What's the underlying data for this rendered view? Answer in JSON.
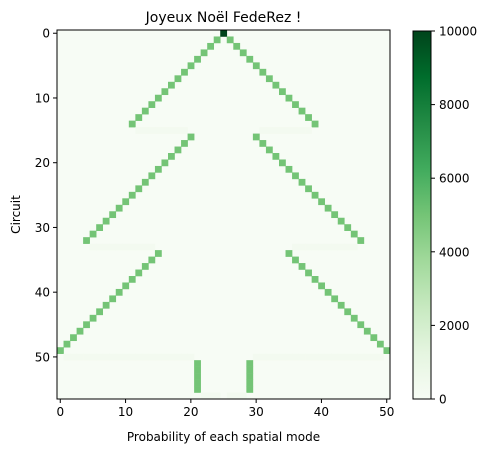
{
  "chart_data": {
    "type": "heatmap",
    "title": "Joyeux Noël FedeRez !",
    "xlabel": "Probability of each spatial mode",
    "ylabel": "Circuit",
    "x_ticks": [
      0,
      10,
      20,
      30,
      40,
      50
    ],
    "y_ticks": [
      0,
      10,
      20,
      30,
      40,
      50
    ],
    "colorbar_ticks": [
      0,
      2000,
      4000,
      6000,
      8000,
      10000
    ],
    "colormap": "Greens",
    "color_min": "#f7fcf5",
    "color_max": "#00441b",
    "vmin": 0,
    "vmax": 10000,
    "n_cols": 51,
    "n_rows": 57,
    "cells": [
      [
        0,
        25,
        10000
      ],
      [
        1,
        24,
        5000
      ],
      [
        1,
        26,
        5000
      ],
      [
        2,
        23,
        5000
      ],
      [
        2,
        27,
        5000
      ],
      [
        3,
        22,
        5000
      ],
      [
        3,
        28,
        5000
      ],
      [
        4,
        21,
        5000
      ],
      [
        4,
        29,
        5000
      ],
      [
        5,
        20,
        5000
      ],
      [
        5,
        30,
        5000
      ],
      [
        6,
        19,
        5000
      ],
      [
        6,
        31,
        5000
      ],
      [
        7,
        18,
        5000
      ],
      [
        7,
        32,
        5000
      ],
      [
        8,
        17,
        5000
      ],
      [
        8,
        33,
        5000
      ],
      [
        9,
        16,
        5000
      ],
      [
        9,
        34,
        5000
      ],
      [
        10,
        15,
        5000
      ],
      [
        10,
        35,
        5000
      ],
      [
        11,
        14,
        5000
      ],
      [
        11,
        36,
        5000
      ],
      [
        12,
        13,
        5000
      ],
      [
        12,
        37,
        5000
      ],
      [
        13,
        12,
        5000
      ],
      [
        13,
        38,
        5000
      ],
      [
        14,
        11,
        5000
      ],
      [
        14,
        39,
        5000
      ],
      [
        15,
        12,
        300
      ],
      [
        15,
        13,
        300
      ],
      [
        15,
        14,
        300
      ],
      [
        15,
        15,
        300
      ],
      [
        15,
        16,
        300
      ],
      [
        15,
        17,
        300
      ],
      [
        15,
        18,
        300
      ],
      [
        15,
        19,
        300
      ],
      [
        15,
        31,
        300
      ],
      [
        15,
        32,
        300
      ],
      [
        15,
        33,
        300
      ],
      [
        15,
        34,
        300
      ],
      [
        15,
        35,
        300
      ],
      [
        15,
        36,
        300
      ],
      [
        15,
        37,
        300
      ],
      [
        15,
        38,
        300
      ],
      [
        16,
        20,
        5000
      ],
      [
        16,
        30,
        5000
      ],
      [
        17,
        19,
        5000
      ],
      [
        17,
        31,
        5000
      ],
      [
        18,
        18,
        5000
      ],
      [
        18,
        32,
        5000
      ],
      [
        19,
        17,
        5000
      ],
      [
        19,
        33,
        5000
      ],
      [
        20,
        16,
        5000
      ],
      [
        20,
        34,
        5000
      ],
      [
        21,
        15,
        5000
      ],
      [
        21,
        35,
        5000
      ],
      [
        22,
        14,
        5000
      ],
      [
        22,
        36,
        5000
      ],
      [
        23,
        13,
        5000
      ],
      [
        23,
        37,
        5000
      ],
      [
        24,
        12,
        5000
      ],
      [
        24,
        38,
        5000
      ],
      [
        25,
        11,
        5000
      ],
      [
        25,
        39,
        5000
      ],
      [
        26,
        10,
        5000
      ],
      [
        26,
        40,
        5000
      ],
      [
        27,
        9,
        5000
      ],
      [
        27,
        41,
        5000
      ],
      [
        28,
        8,
        5000
      ],
      [
        28,
        42,
        5000
      ],
      [
        29,
        7,
        5000
      ],
      [
        29,
        43,
        5000
      ],
      [
        30,
        6,
        5000
      ],
      [
        30,
        44,
        5000
      ],
      [
        31,
        5,
        5000
      ],
      [
        31,
        45,
        5000
      ],
      [
        32,
        4,
        5000
      ],
      [
        32,
        46,
        5000
      ],
      [
        33,
        5,
        300
      ],
      [
        33,
        6,
        300
      ],
      [
        33,
        7,
        300
      ],
      [
        33,
        8,
        300
      ],
      [
        33,
        9,
        300
      ],
      [
        33,
        10,
        300
      ],
      [
        33,
        11,
        300
      ],
      [
        33,
        12,
        300
      ],
      [
        33,
        13,
        300
      ],
      [
        33,
        14,
        300
      ],
      [
        33,
        36,
        300
      ],
      [
        33,
        37,
        300
      ],
      [
        33,
        38,
        300
      ],
      [
        33,
        39,
        300
      ],
      [
        33,
        40,
        300
      ],
      [
        33,
        41,
        300
      ],
      [
        33,
        42,
        300
      ],
      [
        33,
        43,
        300
      ],
      [
        33,
        44,
        300
      ],
      [
        33,
        45,
        300
      ],
      [
        34,
        15,
        5000
      ],
      [
        34,
        35,
        5000
      ],
      [
        35,
        14,
        5000
      ],
      [
        35,
        36,
        5000
      ],
      [
        36,
        13,
        5000
      ],
      [
        36,
        37,
        5000
      ],
      [
        37,
        12,
        5000
      ],
      [
        37,
        38,
        5000
      ],
      [
        38,
        11,
        5000
      ],
      [
        38,
        39,
        5000
      ],
      [
        39,
        10,
        5000
      ],
      [
        39,
        40,
        5000
      ],
      [
        40,
        9,
        5000
      ],
      [
        40,
        41,
        5000
      ],
      [
        41,
        8,
        5000
      ],
      [
        41,
        42,
        5000
      ],
      [
        42,
        7,
        5000
      ],
      [
        42,
        43,
        5000
      ],
      [
        43,
        6,
        5000
      ],
      [
        43,
        44,
        5000
      ],
      [
        44,
        5,
        5000
      ],
      [
        44,
        45,
        5000
      ],
      [
        45,
        4,
        5000
      ],
      [
        45,
        46,
        5000
      ],
      [
        46,
        3,
        5000
      ],
      [
        46,
        47,
        5000
      ],
      [
        47,
        2,
        5000
      ],
      [
        47,
        48,
        5000
      ],
      [
        48,
        1,
        5000
      ],
      [
        48,
        49,
        5000
      ],
      [
        49,
        0,
        5000
      ],
      [
        49,
        50,
        5000
      ],
      [
        50,
        1,
        300
      ],
      [
        50,
        2,
        300
      ],
      [
        50,
        3,
        300
      ],
      [
        50,
        4,
        300
      ],
      [
        50,
        5,
        300
      ],
      [
        50,
        6,
        300
      ],
      [
        50,
        7,
        300
      ],
      [
        50,
        8,
        300
      ],
      [
        50,
        9,
        300
      ],
      [
        50,
        10,
        300
      ],
      [
        50,
        11,
        300
      ],
      [
        50,
        12,
        300
      ],
      [
        50,
        13,
        300
      ],
      [
        50,
        14,
        300
      ],
      [
        50,
        15,
        300
      ],
      [
        50,
        16,
        300
      ],
      [
        50,
        17,
        300
      ],
      [
        50,
        18,
        300
      ],
      [
        50,
        19,
        300
      ],
      [
        50,
        20,
        300
      ],
      [
        50,
        30,
        300
      ],
      [
        50,
        31,
        300
      ],
      [
        50,
        32,
        300
      ],
      [
        50,
        33,
        300
      ],
      [
        50,
        34,
        300
      ],
      [
        50,
        35,
        300
      ],
      [
        50,
        36,
        300
      ],
      [
        50,
        37,
        300
      ],
      [
        50,
        38,
        300
      ],
      [
        50,
        39,
        300
      ],
      [
        50,
        40,
        300
      ],
      [
        50,
        41,
        300
      ],
      [
        50,
        42,
        300
      ],
      [
        50,
        43,
        300
      ],
      [
        50,
        44,
        300
      ],
      [
        50,
        45,
        300
      ],
      [
        50,
        46,
        300
      ],
      [
        50,
        47,
        300
      ],
      [
        50,
        48,
        300
      ],
      [
        50,
        49,
        300
      ],
      [
        51,
        21,
        5000
      ],
      [
        51,
        29,
        5000
      ],
      [
        52,
        21,
        5000
      ],
      [
        52,
        29,
        5000
      ],
      [
        53,
        21,
        5000
      ],
      [
        53,
        29,
        5000
      ],
      [
        54,
        21,
        5000
      ],
      [
        54,
        29,
        5000
      ],
      [
        55,
        21,
        5000
      ],
      [
        55,
        29,
        5000
      ],
      [
        56,
        22,
        300
      ],
      [
        56,
        23,
        300
      ],
      [
        56,
        24,
        300
      ],
      [
        56,
        26,
        300
      ],
      [
        56,
        27,
        300
      ],
      [
        56,
        28,
        300
      ]
    ]
  }
}
